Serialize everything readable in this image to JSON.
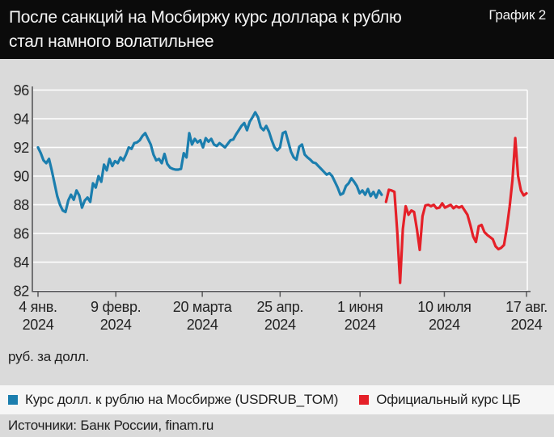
{
  "header": {
    "title_line1": "После санкций на Мосбиржу курс доллара к рублю",
    "title_line2": "стал намного волатильнее",
    "chart_label": "График 2"
  },
  "axis_unit_label": "руб. за долл.",
  "legend": [
    {
      "label": "Курс долл. к рублю на Мосбирже (USDRUB_TOM)",
      "color": "#1b7eae"
    },
    {
      "label": "Официальный курс ЦБ",
      "color": "#e52028"
    }
  ],
  "sources": "Источники: Банк России, finam.ru",
  "colors": {
    "background": "#dadada",
    "header_background": "#0b0b0b",
    "gridline": "#ffffff",
    "axis": "#58585a",
    "tick_text": "#232323",
    "legend_band": "#f6f6f6",
    "series_blue": "#1b7eae",
    "series_red": "#e52028"
  },
  "chart_data": {
    "type": "line",
    "title": "После санкций на Мосбиржу курс доллара к рублю стал намного волатильнее",
    "xlabel": "",
    "ylabel": "руб. за долл.",
    "ylim": [
      82,
      96
    ],
    "y_ticks": [
      96,
      94,
      92,
      90,
      88,
      86,
      84,
      82
    ],
    "grid": true,
    "legend_position": "bottom",
    "x_domain": [
      "2024-01-04",
      "2024-08-17"
    ],
    "x_ticks": [
      {
        "line1": "4 янв.",
        "line2": "2024",
        "date": "2024-01-04"
      },
      {
        "line1": "9 февр.",
        "line2": "2024",
        "date": "2024-02-09"
      },
      {
        "line1": "20 марта",
        "line2": "2024",
        "date": "2024-03-20"
      },
      {
        "line1": "25 апр.",
        "line2": "2024",
        "date": "2024-04-25"
      },
      {
        "line1": "1 июня",
        "line2": "2024",
        "date": "2024-06-01"
      },
      {
        "line1": "10 июля",
        "line2": "2024",
        "date": "2024-07-10"
      },
      {
        "line1": "17 авг.",
        "line2": "2024",
        "date": "2024-08-17"
      }
    ],
    "series": [
      {
        "name": "Курс долл. к рублю на Мосбирже (USDRUB_TOM)",
        "color": "#1b7eae",
        "start_date": "2024-01-04",
        "end_date": "2024-06-11",
        "values": [
          92.0,
          91.6,
          91.1,
          90.9,
          91.2,
          90.4,
          89.5,
          88.6,
          88.0,
          87.6,
          87.5,
          88.3,
          88.7,
          88.35,
          89.0,
          88.65,
          87.8,
          88.3,
          88.5,
          88.2,
          89.5,
          89.2,
          90.0,
          89.6,
          90.8,
          90.4,
          91.2,
          90.7,
          91.05,
          90.9,
          91.3,
          91.1,
          91.5,
          92.0,
          91.9,
          92.3,
          92.35,
          92.5,
          92.8,
          93.0,
          92.6,
          92.2,
          91.5,
          91.1,
          91.2,
          90.9,
          91.55,
          90.85,
          90.6,
          90.5,
          90.45,
          90.45,
          90.5,
          91.6,
          91.3,
          93.0,
          92.2,
          92.6,
          92.35,
          92.5,
          92.0,
          92.65,
          92.4,
          92.6,
          92.2,
          92.1,
          92.3,
          92.15,
          92.0,
          92.25,
          92.5,
          92.55,
          92.9,
          93.2,
          93.5,
          93.7,
          93.2,
          93.8,
          94.1,
          94.45,
          94.1,
          93.4,
          93.2,
          93.5,
          93.1,
          92.5,
          92.0,
          91.8,
          92.0,
          93.0,
          93.1,
          92.4,
          91.7,
          91.3,
          91.15,
          92.05,
          92.2,
          91.5,
          91.3,
          91.15,
          90.95,
          90.9,
          90.7,
          90.5,
          90.3,
          90.1,
          90.2,
          90.0,
          89.6,
          89.2,
          88.7,
          88.8,
          89.3,
          89.5,
          89.85,
          89.6,
          89.3,
          88.8,
          89.0,
          88.7,
          89.1,
          88.6,
          88.9,
          88.5,
          89.0,
          88.7
        ]
      },
      {
        "name": "Официальный курс ЦБ",
        "color": "#e52028",
        "start_date": "2024-06-13",
        "end_date": "2024-08-17",
        "values": [
          88.2,
          89.05,
          89.0,
          88.9,
          86.1,
          82.55,
          86.3,
          87.9,
          87.3,
          87.6,
          87.5,
          86.3,
          84.85,
          87.2,
          87.95,
          88.0,
          87.9,
          88.0,
          87.75,
          87.8,
          88.1,
          87.8,
          87.9,
          88.0,
          87.75,
          87.9,
          87.8,
          87.9,
          87.6,
          87.3,
          86.6,
          85.8,
          85.4,
          86.5,
          86.6,
          86.1,
          85.9,
          85.75,
          85.6,
          85.1,
          84.9,
          85.0,
          85.2,
          86.4,
          87.9,
          89.7,
          92.65,
          90.0,
          89.0,
          88.65,
          88.8
        ]
      }
    ]
  }
}
